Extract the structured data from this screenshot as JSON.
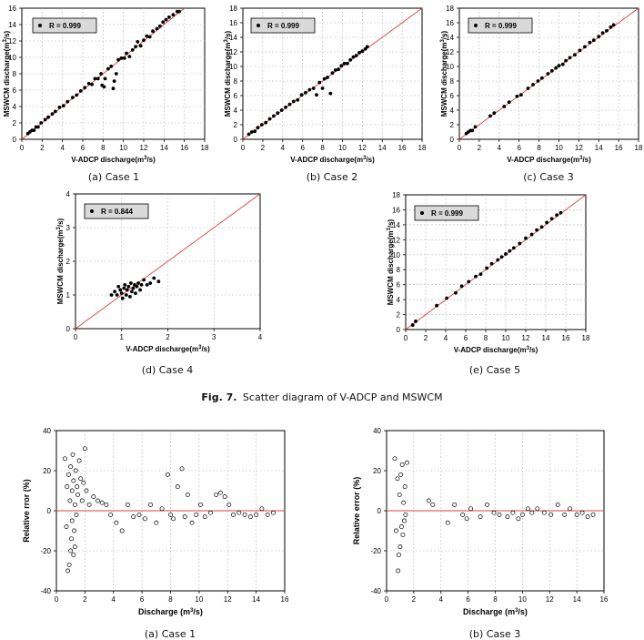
{
  "figure_caption": {
    "label": "Fig. 7.",
    "text": "Scatter diagram of V-ADCP and MSWCM"
  },
  "chart_data": [
    {
      "type": "scatter",
      "caption": "(a) Case 1",
      "xlabel": "V-ADCP discharge(m³/s)",
      "ylabel": "MSWCM discharge(m³/s)",
      "xlim": [
        0,
        18
      ],
      "ylim": [
        0,
        16
      ],
      "xticks": [
        0,
        2,
        4,
        6,
        8,
        10,
        12,
        14,
        16,
        18
      ],
      "yticks": [
        0,
        2,
        4,
        6,
        8,
        10,
        12,
        14,
        16
      ],
      "legend": "R = 0.999",
      "reference_line": "1:1",
      "grid": true,
      "points": [
        [
          0.6,
          0.7
        ],
        [
          0.8,
          0.9
        ],
        [
          1.0,
          1.1
        ],
        [
          1.2,
          1.1
        ],
        [
          1.4,
          1.5
        ],
        [
          1.6,
          1.5
        ],
        [
          1.9,
          2.0
        ],
        [
          2.3,
          2.4
        ],
        [
          2.6,
          2.7
        ],
        [
          3.0,
          3.1
        ],
        [
          3.3,
          3.4
        ],
        [
          3.7,
          3.9
        ],
        [
          4.1,
          4.1
        ],
        [
          4.5,
          4.6
        ],
        [
          5.0,
          5.1
        ],
        [
          5.4,
          5.4
        ],
        [
          5.8,
          5.9
        ],
        [
          6.2,
          6.3
        ],
        [
          6.6,
          6.8
        ],
        [
          6.9,
          6.7
        ],
        [
          7.2,
          7.4
        ],
        [
          7.5,
          7.4
        ],
        [
          7.8,
          8.0
        ],
        [
          7.9,
          6.6
        ],
        [
          8.1,
          6.4
        ],
        [
          8.2,
          7.4
        ],
        [
          8.5,
          8.6
        ],
        [
          8.8,
          8.9
        ],
        [
          9.0,
          6.2
        ],
        [
          9.1,
          7.1
        ],
        [
          9.3,
          8.0
        ],
        [
          9.5,
          9.7
        ],
        [
          9.8,
          9.9
        ],
        [
          10.1,
          9.9
        ],
        [
          10.3,
          10.5
        ],
        [
          10.6,
          10.1
        ],
        [
          10.9,
          10.9
        ],
        [
          11.2,
          11.3
        ],
        [
          11.4,
          11.9
        ],
        [
          11.7,
          11.4
        ],
        [
          12.0,
          12.1
        ],
        [
          12.3,
          12.6
        ],
        [
          12.6,
          12.5
        ],
        [
          12.9,
          13.2
        ],
        [
          13.3,
          13.5
        ],
        [
          13.6,
          13.8
        ],
        [
          13.9,
          14.3
        ],
        [
          14.2,
          14.6
        ],
        [
          14.5,
          14.9
        ],
        [
          14.9,
          15.2
        ],
        [
          15.3,
          15.6
        ],
        [
          15.5,
          15.6
        ]
      ]
    },
    {
      "type": "scatter",
      "caption": "(b) Case 2",
      "xlabel": "V-ADCP discharge(m³/s)",
      "ylabel": "MSWCM discharge(m³/s)",
      "xlim": [
        0,
        18
      ],
      "ylim": [
        0,
        18
      ],
      "xticks": [
        0,
        2,
        4,
        6,
        8,
        10,
        12,
        14,
        16,
        18
      ],
      "yticks": [
        0,
        2,
        4,
        6,
        8,
        10,
        12,
        14,
        16,
        18
      ],
      "legend": "R = 0.999",
      "reference_line": "1:1",
      "grid": true,
      "points": [
        [
          0.6,
          0.7
        ],
        [
          0.9,
          1.0
        ],
        [
          1.2,
          1.1
        ],
        [
          1.5,
          1.6
        ],
        [
          1.9,
          2.0
        ],
        [
          2.3,
          2.3
        ],
        [
          2.7,
          2.8
        ],
        [
          3.1,
          3.2
        ],
        [
          3.5,
          3.6
        ],
        [
          3.9,
          4.0
        ],
        [
          4.3,
          4.4
        ],
        [
          4.7,
          4.8
        ],
        [
          5.1,
          5.2
        ],
        [
          5.5,
          5.4
        ],
        [
          5.9,
          6.1
        ],
        [
          6.3,
          6.4
        ],
        [
          6.7,
          6.8
        ],
        [
          7.1,
          7.0
        ],
        [
          7.4,
          6.1
        ],
        [
          7.7,
          7.8
        ],
        [
          8.0,
          7.0
        ],
        [
          8.2,
          8.3
        ],
        [
          8.5,
          8.5
        ],
        [
          8.8,
          6.3
        ],
        [
          9.0,
          9.1
        ],
        [
          9.3,
          9.5
        ],
        [
          9.6,
          9.6
        ],
        [
          9.9,
          10.1
        ],
        [
          10.2,
          10.4
        ],
        [
          10.5,
          10.4
        ],
        [
          10.8,
          10.9
        ],
        [
          11.1,
          11.3
        ],
        [
          11.4,
          11.5
        ],
        [
          11.7,
          11.9
        ],
        [
          12.0,
          12.1
        ],
        [
          12.3,
          12.4
        ],
        [
          12.5,
          12.7
        ]
      ]
    },
    {
      "type": "scatter",
      "caption": "(c) Case 3",
      "xlabel": "V-ADCP discharge(m³/s)",
      "ylabel": "MSWCM discharge(m³/s)",
      "xlim": [
        0,
        18
      ],
      "ylim": [
        0,
        18
      ],
      "xticks": [
        0,
        2,
        4,
        6,
        8,
        10,
        12,
        14,
        16,
        18
      ],
      "yticks": [
        0,
        2,
        4,
        6,
        8,
        10,
        12,
        14,
        16,
        18
      ],
      "legend": "R = 0.999",
      "reference_line": "1:1",
      "grid": true,
      "points": [
        [
          0.7,
          0.8
        ],
        [
          0.9,
          1.0
        ],
        [
          1.1,
          1.2
        ],
        [
          1.3,
          1.2
        ],
        [
          1.6,
          1.7
        ],
        [
          3.1,
          3.2
        ],
        [
          3.5,
          3.6
        ],
        [
          4.5,
          4.5
        ],
        [
          5.0,
          5.1
        ],
        [
          5.8,
          5.9
        ],
        [
          6.2,
          6.1
        ],
        [
          6.9,
          7.0
        ],
        [
          7.4,
          7.5
        ],
        [
          7.9,
          8.0
        ],
        [
          8.3,
          8.4
        ],
        [
          8.9,
          9.0
        ],
        [
          9.3,
          9.4
        ],
        [
          9.7,
          9.8
        ],
        [
          10.0,
          10.1
        ],
        [
          10.4,
          10.3
        ],
        [
          10.7,
          10.8
        ],
        [
          11.1,
          11.2
        ],
        [
          11.6,
          11.6
        ],
        [
          12.1,
          12.2
        ],
        [
          12.6,
          12.7
        ],
        [
          13.1,
          13.3
        ],
        [
          13.5,
          13.6
        ],
        [
          14.0,
          14.1
        ],
        [
          14.4,
          14.6
        ],
        [
          14.8,
          14.9
        ],
        [
          15.2,
          15.4
        ],
        [
          15.5,
          15.7
        ]
      ]
    },
    {
      "type": "scatter",
      "caption": "(d) Case 4",
      "xlabel": "V-ADCP discharge(m³/s)",
      "ylabel": "MSWCM discharge(m³/s)",
      "xlim": [
        0,
        4
      ],
      "ylim": [
        0,
        4
      ],
      "xticks": [
        0,
        1,
        2,
        3,
        4
      ],
      "yticks": [
        0,
        1,
        2,
        3,
        4
      ],
      "legend": "R = 0.844",
      "reference_line": "1:1",
      "grid": true,
      "points": [
        [
          0.78,
          1.0
        ],
        [
          0.85,
          1.1
        ],
        [
          0.9,
          1.0
        ],
        [
          0.93,
          1.25
        ],
        [
          0.97,
          1.15
        ],
        [
          1.0,
          1.05
        ],
        [
          1.02,
          0.9
        ],
        [
          1.05,
          1.2
        ],
        [
          1.07,
          1.3
        ],
        [
          1.1,
          1.0
        ],
        [
          1.12,
          1.15
        ],
        [
          1.15,
          1.25
        ],
        [
          1.18,
          0.95
        ],
        [
          1.2,
          1.35
        ],
        [
          1.22,
          1.1
        ],
        [
          1.25,
          1.2
        ],
        [
          1.28,
          1.3
        ],
        [
          1.3,
          1.05
        ],
        [
          1.33,
          1.25
        ],
        [
          1.36,
          1.35
        ],
        [
          1.4,
          1.15
        ],
        [
          1.43,
          1.3
        ],
        [
          1.48,
          1.45
        ],
        [
          1.55,
          1.3
        ],
        [
          1.62,
          1.35
        ],
        [
          1.7,
          1.5
        ],
        [
          1.8,
          1.4
        ]
      ]
    },
    {
      "type": "scatter",
      "caption": "(e) Case 5",
      "xlabel": "V-ADCP discharge(m³/s)",
      "ylabel": "MSWCM discharge(m³/s)",
      "xlim": [
        0,
        18
      ],
      "ylim": [
        0,
        18
      ],
      "xticks": [
        0,
        2,
        4,
        6,
        8,
        10,
        12,
        14,
        16,
        18
      ],
      "yticks": [
        0,
        2,
        4,
        6,
        8,
        10,
        12,
        14,
        16,
        18
      ],
      "legend": "R = 0.999",
      "reference_line": "1:1",
      "grid": true,
      "points": [
        [
          0.7,
          0.6
        ],
        [
          1.0,
          1.1
        ],
        [
          3.1,
          3.2
        ],
        [
          4.1,
          4.2
        ],
        [
          5.0,
          4.9
        ],
        [
          5.6,
          5.8
        ],
        [
          6.3,
          6.4
        ],
        [
          7.0,
          7.1
        ],
        [
          7.5,
          7.4
        ],
        [
          8.1,
          8.2
        ],
        [
          8.6,
          8.8
        ],
        [
          9.2,
          9.3
        ],
        [
          9.6,
          9.7
        ],
        [
          10.0,
          10.1
        ],
        [
          10.4,
          10.5
        ],
        [
          10.8,
          10.9
        ],
        [
          11.4,
          11.5
        ],
        [
          12.0,
          12.2
        ],
        [
          12.6,
          12.7
        ],
        [
          13.1,
          13.3
        ],
        [
          13.6,
          13.7
        ],
        [
          14.1,
          14.3
        ],
        [
          14.6,
          14.8
        ],
        [
          15.1,
          15.3
        ],
        [
          15.5,
          15.6
        ]
      ]
    },
    {
      "type": "scatter",
      "caption": "(a) Case 1",
      "xlabel": "Discharge (m³/s)",
      "ylabel": "Relative rror (%)",
      "xlim": [
        0,
        16
      ],
      "ylim": [
        -40,
        40
      ],
      "xticks": [
        0,
        2,
        4,
        6,
        8,
        10,
        12,
        14,
        16
      ],
      "yticks": [
        -40,
        -20,
        0,
        20,
        40
      ],
      "reference_line": "y=0",
      "grid": true,
      "points": [
        [
          0.6,
          26
        ],
        [
          0.7,
          -8
        ],
        [
          0.75,
          12
        ],
        [
          0.8,
          -30
        ],
        [
          0.85,
          18
        ],
        [
          0.9,
          -27
        ],
        [
          0.95,
          5
        ],
        [
          1.0,
          -20
        ],
        [
          1.0,
          22
        ],
        [
          1.05,
          -14
        ],
        [
          1.1,
          10
        ],
        [
          1.1,
          -5
        ],
        [
          1.15,
          28
        ],
        [
          1.2,
          -22
        ],
        [
          1.2,
          15
        ],
        [
          1.25,
          -10
        ],
        [
          1.3,
          3
        ],
        [
          1.3,
          -18
        ],
        [
          1.35,
          20
        ],
        [
          1.4,
          -2
        ],
        [
          1.45,
          12
        ],
        [
          1.5,
          8
        ],
        [
          1.6,
          25
        ],
        [
          1.7,
          16
        ],
        [
          1.8,
          5
        ],
        [
          1.9,
          14
        ],
        [
          2.0,
          31
        ],
        [
          2.1,
          10
        ],
        [
          2.3,
          3
        ],
        [
          2.6,
          7
        ],
        [
          2.9,
          5
        ],
        [
          3.2,
          4
        ],
        [
          3.5,
          3
        ],
        [
          3.8,
          -2
        ],
        [
          4.2,
          -6
        ],
        [
          4.6,
          -10
        ],
        [
          5.0,
          3
        ],
        [
          5.4,
          -3
        ],
        [
          5.8,
          -2
        ],
        [
          6.2,
          -4
        ],
        [
          6.6,
          3
        ],
        [
          7.0,
          -6
        ],
        [
          7.4,
          1
        ],
        [
          7.8,
          18
        ],
        [
          8.0,
          -2
        ],
        [
          8.2,
          -4
        ],
        [
          8.5,
          12
        ],
        [
          8.8,
          21
        ],
        [
          9.0,
          -3
        ],
        [
          9.2,
          8
        ],
        [
          9.5,
          -6
        ],
        [
          9.8,
          -2
        ],
        [
          10.1,
          3
        ],
        [
          10.4,
          -3
        ],
        [
          10.8,
          -1
        ],
        [
          11.2,
          8
        ],
        [
          11.5,
          9
        ],
        [
          11.8,
          7
        ],
        [
          12.1,
          3
        ],
        [
          12.4,
          -2
        ],
        [
          12.8,
          -1
        ],
        [
          13.2,
          -2
        ],
        [
          13.6,
          -3
        ],
        [
          14.0,
          -2
        ],
        [
          14.4,
          1
        ],
        [
          14.8,
          -2
        ],
        [
          15.2,
          -1
        ]
      ]
    },
    {
      "type": "scatter",
      "caption": "(b) Case 3",
      "xlabel": "Discharge (m³/s)",
      "ylabel": "Relative error (%)",
      "xlim": [
        0,
        16
      ],
      "ylim": [
        -40,
        40
      ],
      "xticks": [
        0,
        2,
        4,
        6,
        8,
        10,
        12,
        14,
        16
      ],
      "yticks": [
        -40,
        -20,
        0,
        20,
        40
      ],
      "reference_line": "y=0",
      "grid": true,
      "points": [
        [
          0.6,
          26
        ],
        [
          0.7,
          -10
        ],
        [
          0.8,
          16
        ],
        [
          0.85,
          -30
        ],
        [
          0.9,
          -22
        ],
        [
          0.95,
          8
        ],
        [
          1.0,
          -18
        ],
        [
          1.05,
          18
        ],
        [
          1.1,
          -8
        ],
        [
          1.15,
          23
        ],
        [
          1.2,
          -12
        ],
        [
          1.25,
          4
        ],
        [
          1.3,
          -5
        ],
        [
          1.35,
          12
        ],
        [
          1.4,
          -2
        ],
        [
          1.5,
          24
        ],
        [
          3.1,
          5
        ],
        [
          3.4,
          3
        ],
        [
          4.5,
          -6
        ],
        [
          5.0,
          3
        ],
        [
          5.6,
          -2
        ],
        [
          5.9,
          -4
        ],
        [
          6.2,
          1
        ],
        [
          6.9,
          -3
        ],
        [
          7.4,
          3
        ],
        [
          7.9,
          -1
        ],
        [
          8.3,
          -2
        ],
        [
          8.9,
          -3
        ],
        [
          9.3,
          -1
        ],
        [
          9.7,
          -4
        ],
        [
          10.0,
          -2
        ],
        [
          10.4,
          1
        ],
        [
          10.7,
          -1
        ],
        [
          11.1,
          1
        ],
        [
          11.6,
          -1
        ],
        [
          12.1,
          -2
        ],
        [
          12.6,
          3
        ],
        [
          13.1,
          -2
        ],
        [
          13.5,
          1
        ],
        [
          14.0,
          -2
        ],
        [
          14.4,
          -1
        ],
        [
          14.8,
          -3
        ],
        [
          15.2,
          -2
        ]
      ]
    }
  ]
}
